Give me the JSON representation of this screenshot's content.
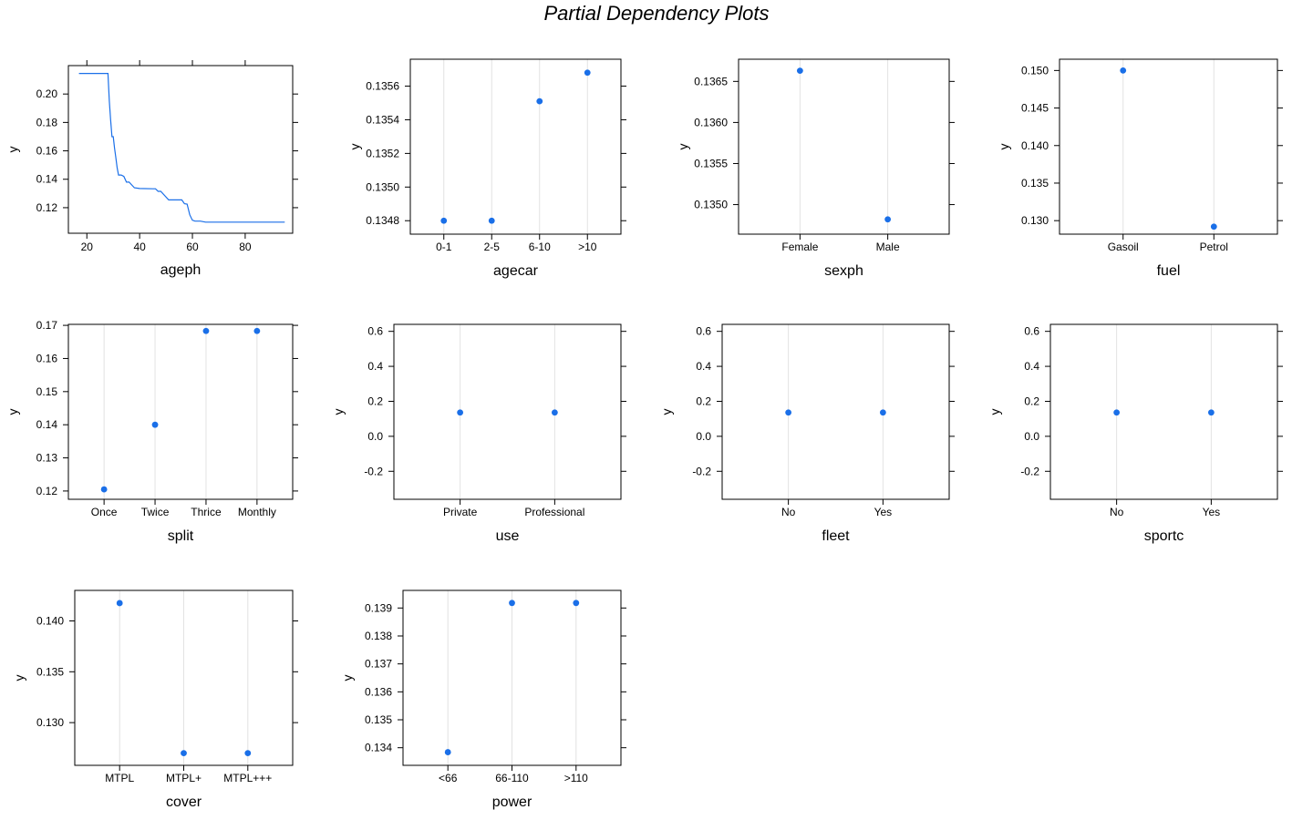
{
  "title": "Partial Dependency Plots",
  "colors": {
    "series": "#1a6fe8",
    "gridline": "#e2e2e2",
    "axis": "#000000"
  },
  "chart_data": [
    {
      "type": "line",
      "xlabel": "ageph",
      "ylabel": "y",
      "xlim": [
        13,
        98
      ],
      "ylim": [
        0.102,
        0.22
      ],
      "xticks": [
        20,
        40,
        60,
        80
      ],
      "yticks": [
        0.12,
        0.14,
        0.16,
        0.18,
        0.2
      ],
      "ytick_labels": [
        "0.12",
        "0.14",
        "0.16",
        "0.18",
        "0.20"
      ],
      "x": [
        17,
        27,
        28,
        28.5,
        29,
        29.5,
        30,
        30.5,
        31,
        31.5,
        32,
        33,
        34,
        35,
        36,
        37,
        38,
        40,
        45,
        46,
        47,
        48,
        51,
        52,
        53,
        54,
        55,
        56,
        57,
        58,
        59,
        60,
        61,
        63,
        65,
        70,
        80,
        95
      ],
      "y": [
        0.2145,
        0.2145,
        0.2145,
        0.195,
        0.182,
        0.17,
        0.17,
        0.162,
        0.155,
        0.148,
        0.143,
        0.143,
        0.142,
        0.138,
        0.138,
        0.136,
        0.134,
        0.1335,
        0.1333,
        0.1333,
        0.1315,
        0.1315,
        0.1255,
        0.1255,
        0.1255,
        0.1255,
        0.1255,
        0.1255,
        0.1228,
        0.1225,
        0.115,
        0.1112,
        0.1105,
        0.1105,
        0.1098,
        0.1098,
        0.1098,
        0.1098
      ]
    },
    {
      "type": "dot",
      "xlabel": "agecar",
      "ylabel": "y",
      "categories": [
        "0-1",
        "2-5",
        "6-10",
        ">10"
      ],
      "values": [
        0.1348,
        0.1348,
        0.13551,
        0.13568
      ],
      "ylim": [
        0.13472,
        0.13576
      ],
      "yticks": [
        0.1348,
        0.135,
        0.1352,
        0.1354,
        0.1356
      ],
      "ytick_labels": [
        "0.1348",
        "0.1350",
        "0.1352",
        "0.1354",
        "0.1356"
      ]
    },
    {
      "type": "dot",
      "xlabel": "sexph",
      "ylabel": "y",
      "categories": [
        "Female",
        "Male"
      ],
      "values": [
        0.13663,
        0.13482
      ],
      "ylim": [
        0.13464,
        0.13677
      ],
      "yticks": [
        0.135,
        0.1355,
        0.136,
        0.1365
      ],
      "ytick_labels": [
        "0.1350",
        "0.1355",
        "0.1360",
        "0.1365"
      ]
    },
    {
      "type": "dot",
      "xlabel": "fuel",
      "ylabel": "y",
      "categories": [
        "Gasoil",
        "Petrol"
      ],
      "values": [
        0.15,
        0.1292
      ],
      "ylim": [
        0.1282,
        0.1515
      ],
      "yticks": [
        0.13,
        0.135,
        0.14,
        0.145,
        0.15
      ],
      "ytick_labels": [
        "0.130",
        "0.135",
        "0.140",
        "0.145",
        "0.150"
      ]
    },
    {
      "type": "dot",
      "xlabel": "split",
      "ylabel": "y",
      "categories": [
        "Once",
        "Twice",
        "Thrice",
        "Monthly"
      ],
      "values": [
        0.1205,
        0.14,
        0.1683,
        0.1683
      ],
      "ylim": [
        0.1175,
        0.1703
      ],
      "yticks": [
        0.12,
        0.13,
        0.14,
        0.15,
        0.16,
        0.17
      ],
      "ytick_labels": [
        "0.12",
        "0.13",
        "0.14",
        "0.15",
        "0.16",
        "0.17"
      ]
    },
    {
      "type": "dot",
      "xlabel": "use",
      "ylabel": "y",
      "categories": [
        "Private",
        "Professional"
      ],
      "values": [
        0.136,
        0.136
      ],
      "ylim": [
        -0.36,
        0.64
      ],
      "yticks": [
        -0.2,
        0.0,
        0.2,
        0.4,
        0.6
      ],
      "ytick_labels": [
        "-0.2",
        "0.0",
        "0.2",
        "0.4",
        "0.6"
      ]
    },
    {
      "type": "dot",
      "xlabel": "fleet",
      "ylabel": "y",
      "categories": [
        "No",
        "Yes"
      ],
      "values": [
        0.136,
        0.136
      ],
      "ylim": [
        -0.36,
        0.64
      ],
      "yticks": [
        -0.2,
        0.0,
        0.2,
        0.4,
        0.6
      ],
      "ytick_labels": [
        "-0.2",
        "0.0",
        "0.2",
        "0.4",
        "0.6"
      ]
    },
    {
      "type": "dot",
      "xlabel": "sportc",
      "ylabel": "y",
      "categories": [
        "No",
        "Yes"
      ],
      "values": [
        0.136,
        0.136
      ],
      "ylim": [
        -0.36,
        0.64
      ],
      "yticks": [
        -0.2,
        0.0,
        0.2,
        0.4,
        0.6
      ],
      "ytick_labels": [
        "-0.2",
        "0.0",
        "0.2",
        "0.4",
        "0.6"
      ]
    },
    {
      "type": "dot",
      "xlabel": "cover",
      "ylabel": "y",
      "categories": [
        "MTPL",
        "MTPL+",
        "MTPL+++"
      ],
      "values": [
        0.14175,
        0.127,
        0.127
      ],
      "ylim": [
        0.1258,
        0.143
      ],
      "yticks": [
        0.13,
        0.135,
        0.14
      ],
      "ytick_labels": [
        "0.130",
        "0.135",
        "0.140"
      ]
    },
    {
      "type": "dot",
      "xlabel": "power",
      "ylabel": "y",
      "categories": [
        "<66",
        "66-110",
        ">110"
      ],
      "values": [
        0.13384,
        0.13918,
        0.13918
      ],
      "ylim": [
        0.13337,
        0.13963
      ],
      "yticks": [
        0.134,
        0.135,
        0.136,
        0.137,
        0.138,
        0.139
      ],
      "ytick_labels": [
        "0.134",
        "0.135",
        "0.136",
        "0.137",
        "0.138",
        "0.139"
      ]
    }
  ]
}
